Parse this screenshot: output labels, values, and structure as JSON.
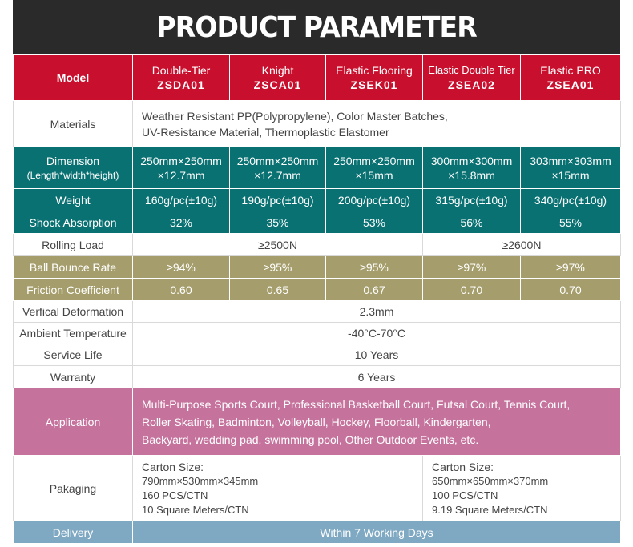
{
  "title": "PRODUCT PARAMETER",
  "model": {
    "label": "Model",
    "products": [
      {
        "name": "Double-Tier",
        "code": "ZSDA01"
      },
      {
        "name": "Knight",
        "code": "ZSCA01"
      },
      {
        "name": "Elastic Flooring",
        "code": "ZSEK01"
      },
      {
        "name": "Elastic Double Tier",
        "code": "ZSEA02"
      },
      {
        "name": "Elastic PRO",
        "code": "ZSEA01"
      }
    ]
  },
  "materials": {
    "label": "Materials",
    "line1": "Weather Resistant PP(Polypropylene), Color Master Batches,",
    "line2": "UV-Resistance Material, Thermoplastic Elastomer"
  },
  "dimension": {
    "label": "Dimension",
    "sublabel": "(Length*width*height)",
    "values": [
      {
        "a": "250mm×250mm",
        "b": "×12.7mm"
      },
      {
        "a": "250mm×250mm",
        "b": "×12.7mm"
      },
      {
        "a": "250mm×250mm",
        "b": "×15mm"
      },
      {
        "a": "300mm×300mm",
        "b": "×15.8mm"
      },
      {
        "a": "303mm×303mm",
        "b": "×15mm"
      }
    ]
  },
  "weight": {
    "label": "Weight",
    "values": [
      "160g/pc(±10g)",
      "190g/pc(±10g)",
      "200g/pc(±10g)",
      "315g/pc(±10g)",
      "340g/pc(±10g)"
    ]
  },
  "shock": {
    "label": "Shock Absorption",
    "values": [
      "32%",
      "35%",
      "53%",
      "56%",
      "55%"
    ]
  },
  "rolling": {
    "label": "Rolling Load",
    "value1": "≥2500N",
    "value2": "≥2600N"
  },
  "bounce": {
    "label": "Ball Bounce Rate",
    "values": [
      "≥94%",
      "≥95%",
      "≥95%",
      "≥97%",
      "≥97%"
    ]
  },
  "friction": {
    "label": "Friction Coefficient",
    "values": [
      "0.60",
      "0.65",
      "0.67",
      "0.70",
      "0.70"
    ]
  },
  "deformation": {
    "label": "Verfical Deformation",
    "value": "2.3mm"
  },
  "ambient": {
    "label": "Ambient Temperature",
    "value": "-40°C-70°C"
  },
  "service": {
    "label": "Service Life",
    "value": "10 Years"
  },
  "warranty": {
    "label": "Warranty",
    "value": "6 Years"
  },
  "application": {
    "label": "Application",
    "line1": "Multi-Purpose Sports Court, Professional Basketball Court, Futsal Court, Tennis Court,",
    "line2": "Roller Skating, Badminton, Volleyball, Hockey, Floorball, Kindergarten,",
    "line3": "Backyard, wedding pad, swimming pool, Other Outdoor Events, etc."
  },
  "packaging": {
    "label": "Pakaging",
    "left": {
      "title": "Carton Size:",
      "size": "790mm×530mm×345mm",
      "pcs": "160 PCS/CTN",
      "area": "10 Square Meters/CTN"
    },
    "right": {
      "title": "Carton Size:",
      "size": "650mm×650mm×370mm",
      "pcs": "100 PCS/CTN",
      "area": "9.19 Square Meters/CTN"
    }
  },
  "delivery": {
    "label": "Delivery",
    "value": "Within 7 Working Days"
  }
}
